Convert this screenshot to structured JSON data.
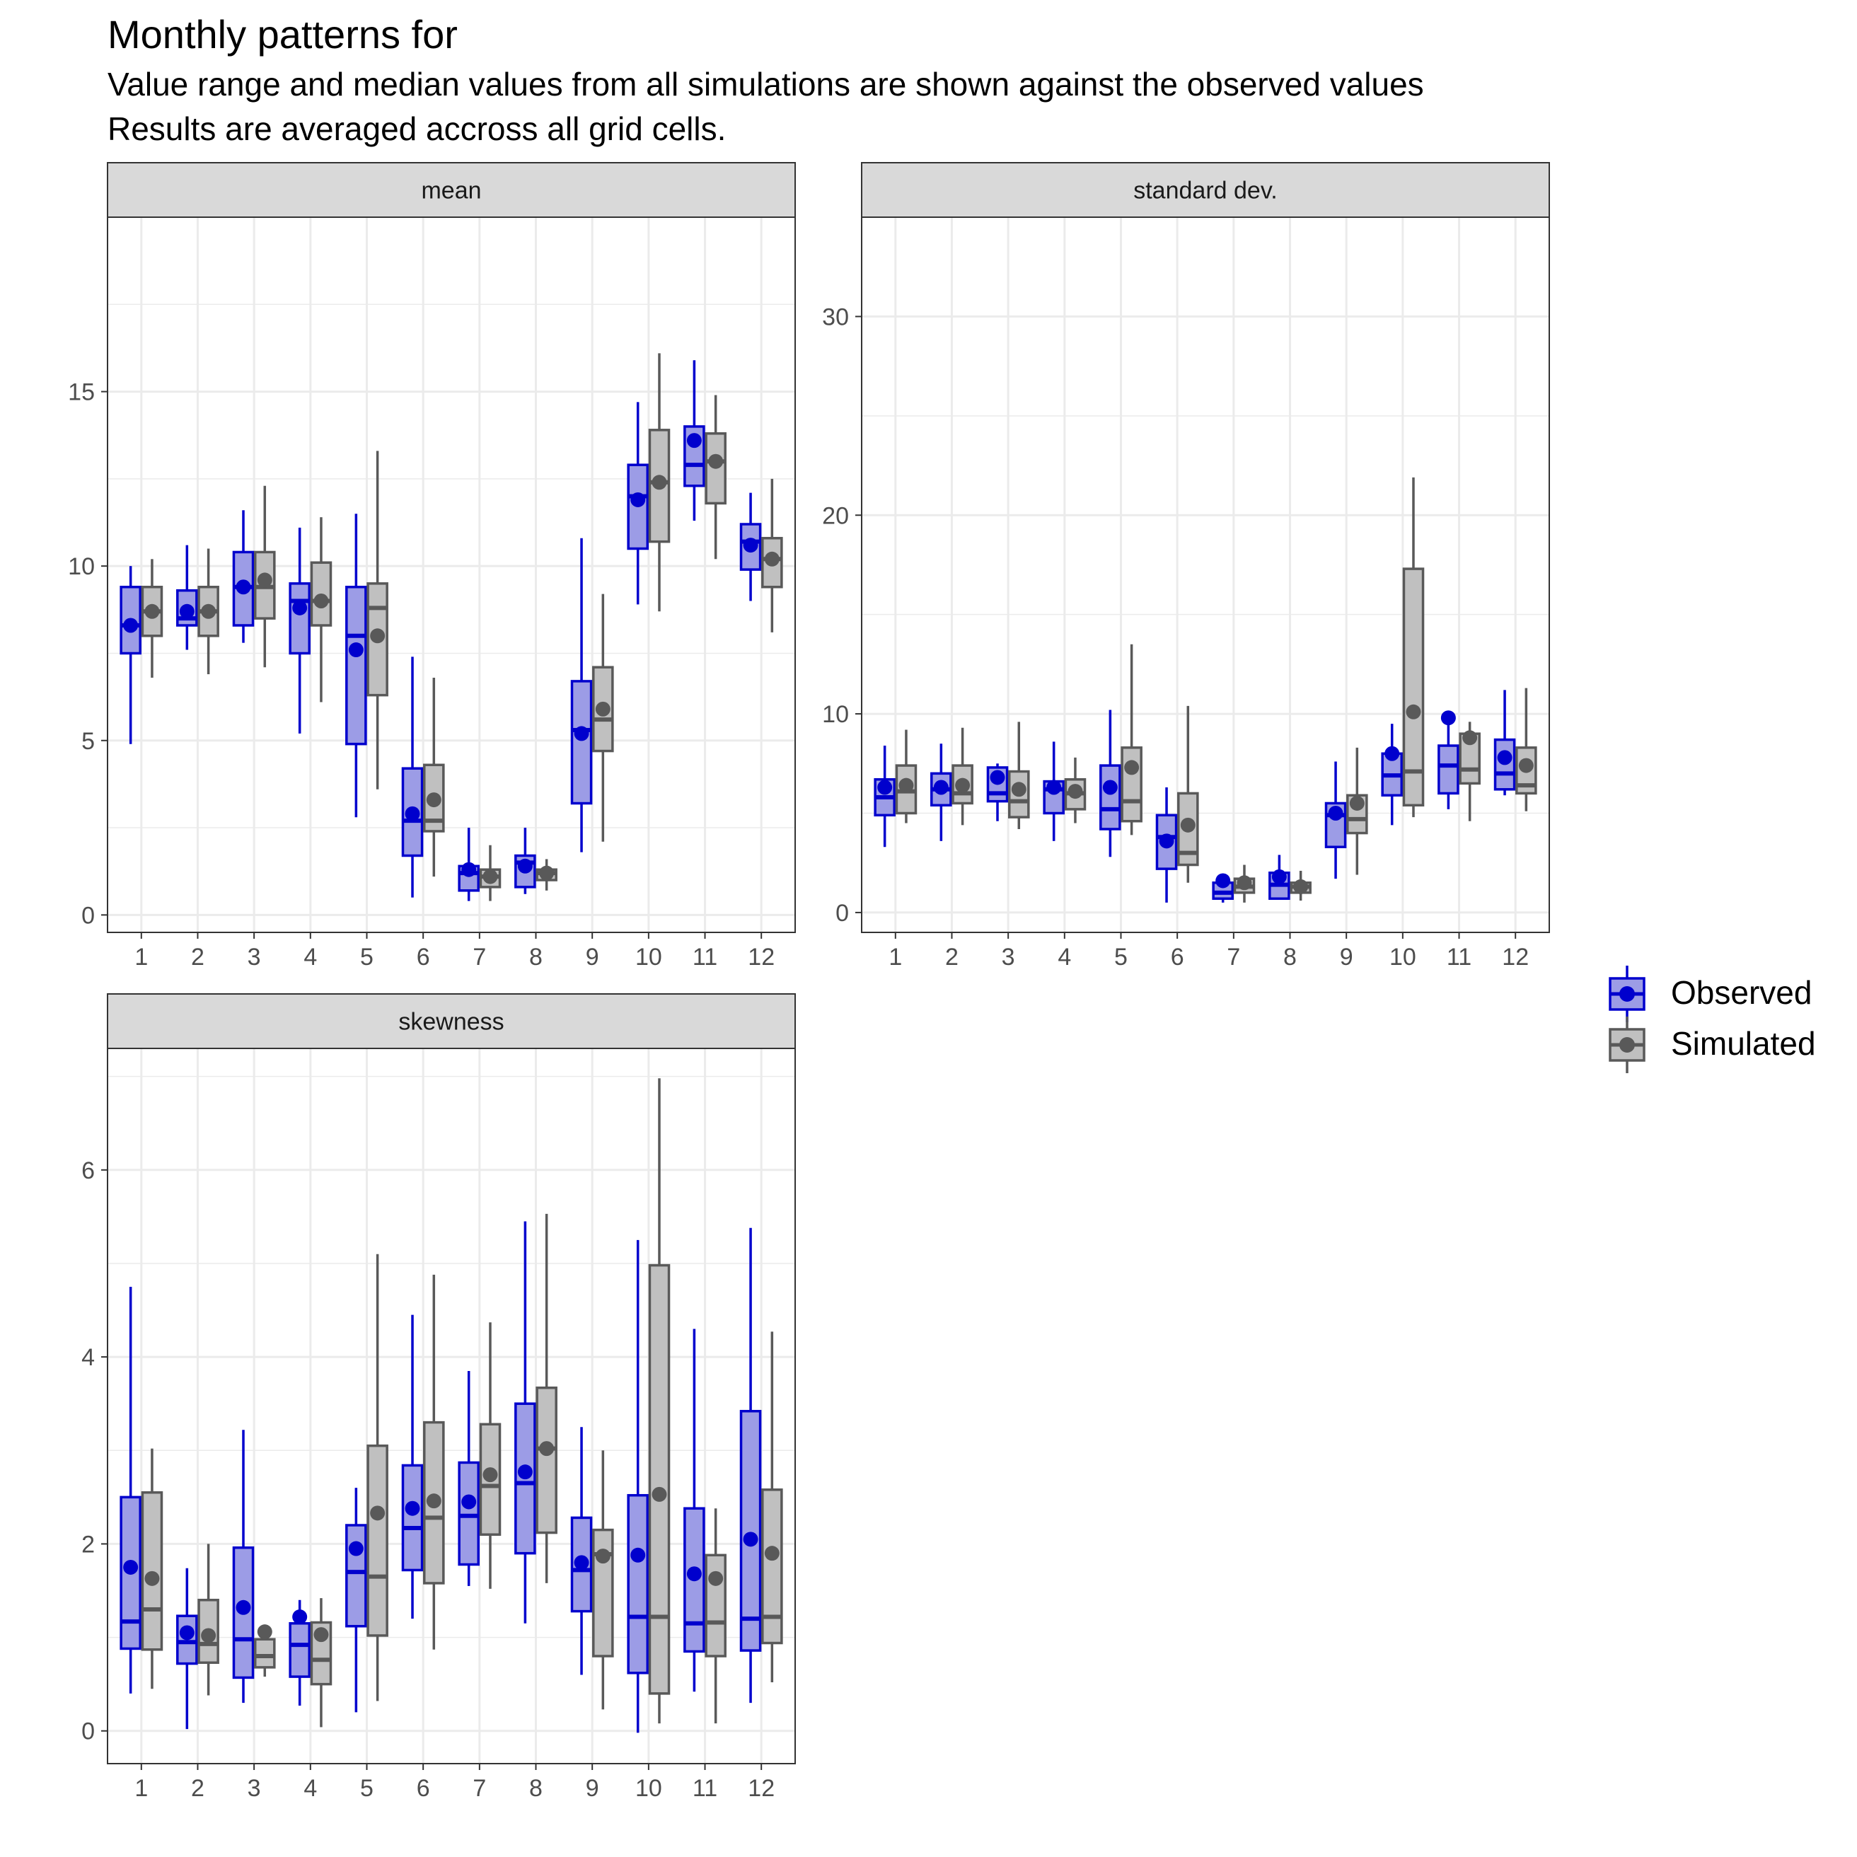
{
  "header": {
    "title": "Monthly patterns for",
    "subtitle_line1": "Value range and median values from all simulations are shown against the observed values",
    "subtitle_line2": "Results are averaged accross all grid cells."
  },
  "colors": {
    "observed_line": "#0000CD",
    "observed_fill": "#9C9CE6",
    "simulated_line": "#595959",
    "simulated_fill": "#C0C0C0",
    "strip_fill": "#D9D9D9",
    "grid": "#EBEBEB"
  },
  "legend": {
    "items": [
      {
        "label": "Observed",
        "series": "observed"
      },
      {
        "label": "Simulated",
        "series": "simulated"
      }
    ]
  },
  "chart_data": [
    {
      "type": "boxplot",
      "strip": "mean",
      "categories": [
        "1",
        "2",
        "3",
        "4",
        "5",
        "6",
        "7",
        "8",
        "9",
        "10",
        "11",
        "12"
      ],
      "ylim": [
        -0.5,
        20
      ],
      "y_ticks": [
        0,
        5,
        10,
        15
      ],
      "observed": [
        {
          "min": 4.9,
          "q1": 7.5,
          "median": 8.3,
          "q3": 9.4,
          "max": 10.0,
          "point": 8.3
        },
        {
          "min": 7.6,
          "q1": 8.3,
          "median": 8.5,
          "q3": 9.3,
          "max": 10.6,
          "point": 8.7
        },
        {
          "min": 7.8,
          "q1": 8.3,
          "median": 9.4,
          "q3": 10.4,
          "max": 11.6,
          "point": 9.4
        },
        {
          "min": 5.2,
          "q1": 7.5,
          "median": 9.0,
          "q3": 9.5,
          "max": 11.1,
          "point": 8.8
        },
        {
          "min": 2.8,
          "q1": 4.9,
          "median": 8.0,
          "q3": 9.4,
          "max": 11.5,
          "point": 7.6
        },
        {
          "min": 0.5,
          "q1": 1.7,
          "median": 2.7,
          "q3": 4.2,
          "max": 7.4,
          "point": 2.9
        },
        {
          "min": 0.4,
          "q1": 0.7,
          "median": 1.2,
          "q3": 1.4,
          "max": 2.5,
          "point": 1.3
        },
        {
          "min": 0.6,
          "q1": 0.8,
          "median": 1.5,
          "q3": 1.7,
          "max": 2.5,
          "point": 1.4
        },
        {
          "min": 1.8,
          "q1": 3.2,
          "median": 5.3,
          "q3": 6.7,
          "max": 10.8,
          "point": 5.2
        },
        {
          "min": 8.9,
          "q1": 10.5,
          "median": 12.0,
          "q3": 12.9,
          "max": 14.7,
          "point": 11.9
        },
        {
          "min": 11.3,
          "q1": 12.3,
          "median": 12.9,
          "q3": 14.0,
          "max": 15.9,
          "point": 13.6
        },
        {
          "min": 9.0,
          "q1": 9.9,
          "median": 10.7,
          "q3": 11.2,
          "max": 12.1,
          "point": 10.6
        }
      ],
      "simulated": [
        {
          "min": 6.8,
          "q1": 8.0,
          "median": 8.7,
          "q3": 9.4,
          "max": 10.2,
          "point": 8.7
        },
        {
          "min": 6.9,
          "q1": 8.0,
          "median": 8.7,
          "q3": 9.4,
          "max": 10.5,
          "point": 8.7
        },
        {
          "min": 7.1,
          "q1": 8.5,
          "median": 9.4,
          "q3": 10.4,
          "max": 12.3,
          "point": 9.6
        },
        {
          "min": 6.1,
          "q1": 8.3,
          "median": 9.0,
          "q3": 10.1,
          "max": 11.4,
          "point": 9.0
        },
        {
          "min": 3.6,
          "q1": 6.3,
          "median": 8.8,
          "q3": 9.5,
          "max": 13.3,
          "point": 8.0
        },
        {
          "min": 1.1,
          "q1": 2.4,
          "median": 2.7,
          "q3": 4.3,
          "max": 6.8,
          "point": 3.3
        },
        {
          "min": 0.4,
          "q1": 0.8,
          "median": 1.1,
          "q3": 1.3,
          "max": 2.0,
          "point": 1.1
        },
        {
          "min": 0.7,
          "q1": 1.0,
          "median": 1.2,
          "q3": 1.3,
          "max": 1.6,
          "point": 1.2
        },
        {
          "min": 2.1,
          "q1": 4.7,
          "median": 5.6,
          "q3": 7.1,
          "max": 9.2,
          "point": 5.9
        },
        {
          "min": 8.7,
          "q1": 10.7,
          "median": 12.4,
          "q3": 13.9,
          "max": 16.1,
          "point": 12.4
        },
        {
          "min": 10.2,
          "q1": 11.8,
          "median": 13.0,
          "q3": 13.8,
          "max": 14.9,
          "point": 13.0
        },
        {
          "min": 8.1,
          "q1": 9.4,
          "median": 10.2,
          "q3": 10.8,
          "max": 12.5,
          "point": 10.2
        }
      ]
    },
    {
      "type": "boxplot",
      "strip": "standard dev.",
      "categories": [
        "1",
        "2",
        "3",
        "4",
        "5",
        "6",
        "7",
        "8",
        "9",
        "10",
        "11",
        "12"
      ],
      "ylim": [
        -1,
        35
      ],
      "y_ticks": [
        0,
        10,
        20,
        30
      ],
      "observed": [
        {
          "min": 3.3,
          "q1": 4.9,
          "median": 5.8,
          "q3": 6.7,
          "max": 8.4,
          "point": 6.3
        },
        {
          "min": 3.6,
          "q1": 5.4,
          "median": 6.2,
          "q3": 7.0,
          "max": 8.5,
          "point": 6.3
        },
        {
          "min": 4.6,
          "q1": 5.6,
          "median": 6.0,
          "q3": 7.3,
          "max": 7.5,
          "point": 6.8
        },
        {
          "min": 3.6,
          "q1": 5.0,
          "median": 6.2,
          "q3": 6.6,
          "max": 8.6,
          "point": 6.3
        },
        {
          "min": 2.8,
          "q1": 4.2,
          "median": 5.2,
          "q3": 7.4,
          "max": 10.2,
          "point": 6.3
        },
        {
          "min": 0.5,
          "q1": 2.2,
          "median": 3.8,
          "q3": 4.9,
          "max": 6.3,
          "point": 3.6
        },
        {
          "min": 0.5,
          "q1": 0.7,
          "median": 1.0,
          "q3": 1.5,
          "max": 1.8,
          "point": 1.6
        },
        {
          "min": 0.7,
          "q1": 0.7,
          "median": 1.4,
          "q3": 2.0,
          "max": 2.9,
          "point": 1.8
        },
        {
          "min": 1.7,
          "q1": 3.3,
          "median": 4.9,
          "q3": 5.5,
          "max": 7.6,
          "point": 5.0
        },
        {
          "min": 4.4,
          "q1": 5.9,
          "median": 6.9,
          "q3": 8.0,
          "max": 9.5,
          "point": 8.0
        },
        {
          "min": 5.2,
          "q1": 6.0,
          "median": 7.4,
          "q3": 8.4,
          "max": 9.8,
          "point": 9.8
        },
        {
          "min": 5.9,
          "q1": 6.2,
          "median": 7.0,
          "q3": 8.7,
          "max": 11.2,
          "point": 7.8
        }
      ],
      "simulated": [
        {
          "min": 4.5,
          "q1": 5.0,
          "median": 6.1,
          "q3": 7.4,
          "max": 9.2,
          "point": 6.4
        },
        {
          "min": 4.4,
          "q1": 5.5,
          "median": 6.0,
          "q3": 7.4,
          "max": 9.3,
          "point": 6.4
        },
        {
          "min": 4.2,
          "q1": 4.8,
          "median": 5.6,
          "q3": 7.1,
          "max": 9.6,
          "point": 6.2
        },
        {
          "min": 4.5,
          "q1": 5.2,
          "median": 6.0,
          "q3": 6.7,
          "max": 7.8,
          "point": 6.1
        },
        {
          "min": 3.9,
          "q1": 4.6,
          "median": 5.6,
          "q3": 8.3,
          "max": 13.5,
          "point": 7.3
        },
        {
          "min": 1.5,
          "q1": 2.4,
          "median": 3.0,
          "q3": 6.0,
          "max": 10.4,
          "point": 4.4
        },
        {
          "min": 0.5,
          "q1": 1.0,
          "median": 1.3,
          "q3": 1.7,
          "max": 2.4,
          "point": 1.5
        },
        {
          "min": 0.6,
          "q1": 1.0,
          "median": 1.3,
          "q3": 1.5,
          "max": 2.1,
          "point": 1.3
        },
        {
          "min": 1.9,
          "q1": 4.0,
          "median": 4.7,
          "q3": 5.9,
          "max": 8.3,
          "point": 5.5
        },
        {
          "min": 4.8,
          "q1": 5.4,
          "median": 7.1,
          "q3": 17.3,
          "max": 21.9,
          "point": 10.1
        },
        {
          "min": 4.6,
          "q1": 6.5,
          "median": 7.2,
          "q3": 9.0,
          "max": 9.6,
          "point": 8.8
        },
        {
          "min": 5.1,
          "q1": 6.0,
          "median": 6.4,
          "q3": 8.3,
          "max": 11.3,
          "point": 7.4
        }
      ]
    },
    {
      "type": "boxplot",
      "strip": "skewness",
      "categories": [
        "1",
        "2",
        "3",
        "4",
        "5",
        "6",
        "7",
        "8",
        "9",
        "10",
        "11",
        "12"
      ],
      "ylim": [
        -0.35,
        7.3
      ],
      "y_ticks": [
        0,
        2,
        4,
        6
      ],
      "observed": [
        {
          "min": 0.4,
          "q1": 0.88,
          "median": 1.17,
          "q3": 2.5,
          "max": 4.75,
          "point": 1.75
        },
        {
          "min": 0.02,
          "q1": 0.72,
          "median": 0.95,
          "q3": 1.23,
          "max": 1.74,
          "point": 1.05
        },
        {
          "min": 0.3,
          "q1": 0.57,
          "median": 0.98,
          "q3": 1.96,
          "max": 3.22,
          "point": 1.32
        },
        {
          "min": 0.27,
          "q1": 0.58,
          "median": 0.92,
          "q3": 1.15,
          "max": 1.4,
          "point": 1.22
        },
        {
          "min": 0.2,
          "q1": 1.12,
          "median": 1.7,
          "q3": 2.2,
          "max": 2.6,
          "point": 1.95
        },
        {
          "min": 1.2,
          "q1": 1.72,
          "median": 2.17,
          "q3": 2.84,
          "max": 4.45,
          "point": 2.38
        },
        {
          "min": 1.55,
          "q1": 1.78,
          "median": 2.3,
          "q3": 2.87,
          "max": 3.85,
          "point": 2.45
        },
        {
          "min": 1.15,
          "q1": 1.9,
          "median": 2.65,
          "q3": 3.5,
          "max": 5.45,
          "point": 2.77
        },
        {
          "min": 0.6,
          "q1": 1.28,
          "median": 1.72,
          "q3": 2.28,
          "max": 3.25,
          "point": 1.8
        },
        {
          "min": -0.02,
          "q1": 0.62,
          "median": 1.22,
          "q3": 2.52,
          "max": 5.25,
          "point": 1.88
        },
        {
          "min": 0.42,
          "q1": 0.85,
          "median": 1.15,
          "q3": 2.38,
          "max": 4.3,
          "point": 1.68
        },
        {
          "min": 0.3,
          "q1": 0.86,
          "median": 1.2,
          "q3": 3.42,
          "max": 5.38,
          "point": 2.05
        }
      ],
      "simulated": [
        {
          "min": 0.45,
          "q1": 0.87,
          "median": 1.3,
          "q3": 2.55,
          "max": 3.02,
          "point": 1.63
        },
        {
          "min": 0.38,
          "q1": 0.73,
          "median": 0.93,
          "q3": 1.4,
          "max": 2.0,
          "point": 1.02
        },
        {
          "min": 0.58,
          "q1": 0.68,
          "median": 0.8,
          "q3": 0.98,
          "max": 1.12,
          "point": 1.06
        },
        {
          "min": 0.04,
          "q1": 0.5,
          "median": 0.76,
          "q3": 1.16,
          "max": 1.42,
          "point": 1.03
        },
        {
          "min": 0.32,
          "q1": 1.02,
          "median": 1.65,
          "q3": 3.05,
          "max": 5.1,
          "point": 2.33
        },
        {
          "min": 0.87,
          "q1": 1.58,
          "median": 2.28,
          "q3": 3.3,
          "max": 4.88,
          "point": 2.46
        },
        {
          "min": 1.52,
          "q1": 2.1,
          "median": 2.62,
          "q3": 3.28,
          "max": 4.37,
          "point": 2.74
        },
        {
          "min": 1.58,
          "q1": 2.12,
          "median": 3.02,
          "q3": 3.67,
          "max": 5.53,
          "point": 3.02
        },
        {
          "min": 0.23,
          "q1": 0.8,
          "median": 1.89,
          "q3": 2.15,
          "max": 3.0,
          "point": 1.87
        },
        {
          "min": 0.08,
          "q1": 0.4,
          "median": 1.22,
          "q3": 4.98,
          "max": 6.98,
          "point": 2.53
        },
        {
          "min": 0.08,
          "q1": 0.8,
          "median": 1.16,
          "q3": 1.88,
          "max": 2.38,
          "point": 1.63
        },
        {
          "min": 0.52,
          "q1": 0.94,
          "median": 1.22,
          "q3": 2.58,
          "max": 4.27,
          "point": 1.9
        }
      ]
    }
  ]
}
